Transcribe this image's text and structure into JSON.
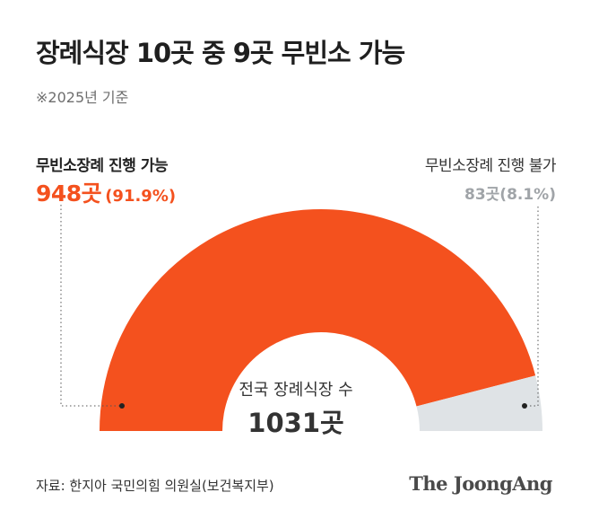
{
  "chart_data": {
    "type": "pie",
    "title": "장례식장 10곳 중 9곳 무빈소 가능",
    "subtitle": "※2025년 기준",
    "center_label": "전국 장례식장 수",
    "center_value": "1031곳",
    "segments": [
      {
        "name": "무빈소장례 진행 가능",
        "value": 948,
        "value_label": "948곳",
        "percent_label": "(91.9%)",
        "percent": 91.9,
        "color": "#f4511e"
      },
      {
        "name": "무빈소장례 진행 불가",
        "value": 83,
        "value_label": "83곳(8.1%)",
        "percent": 8.1,
        "color": "#dfe3e6"
      }
    ]
  },
  "source": "자료: 한지아 국민의힘 의원실(보건복지부)",
  "brand": "The JoongAng"
}
